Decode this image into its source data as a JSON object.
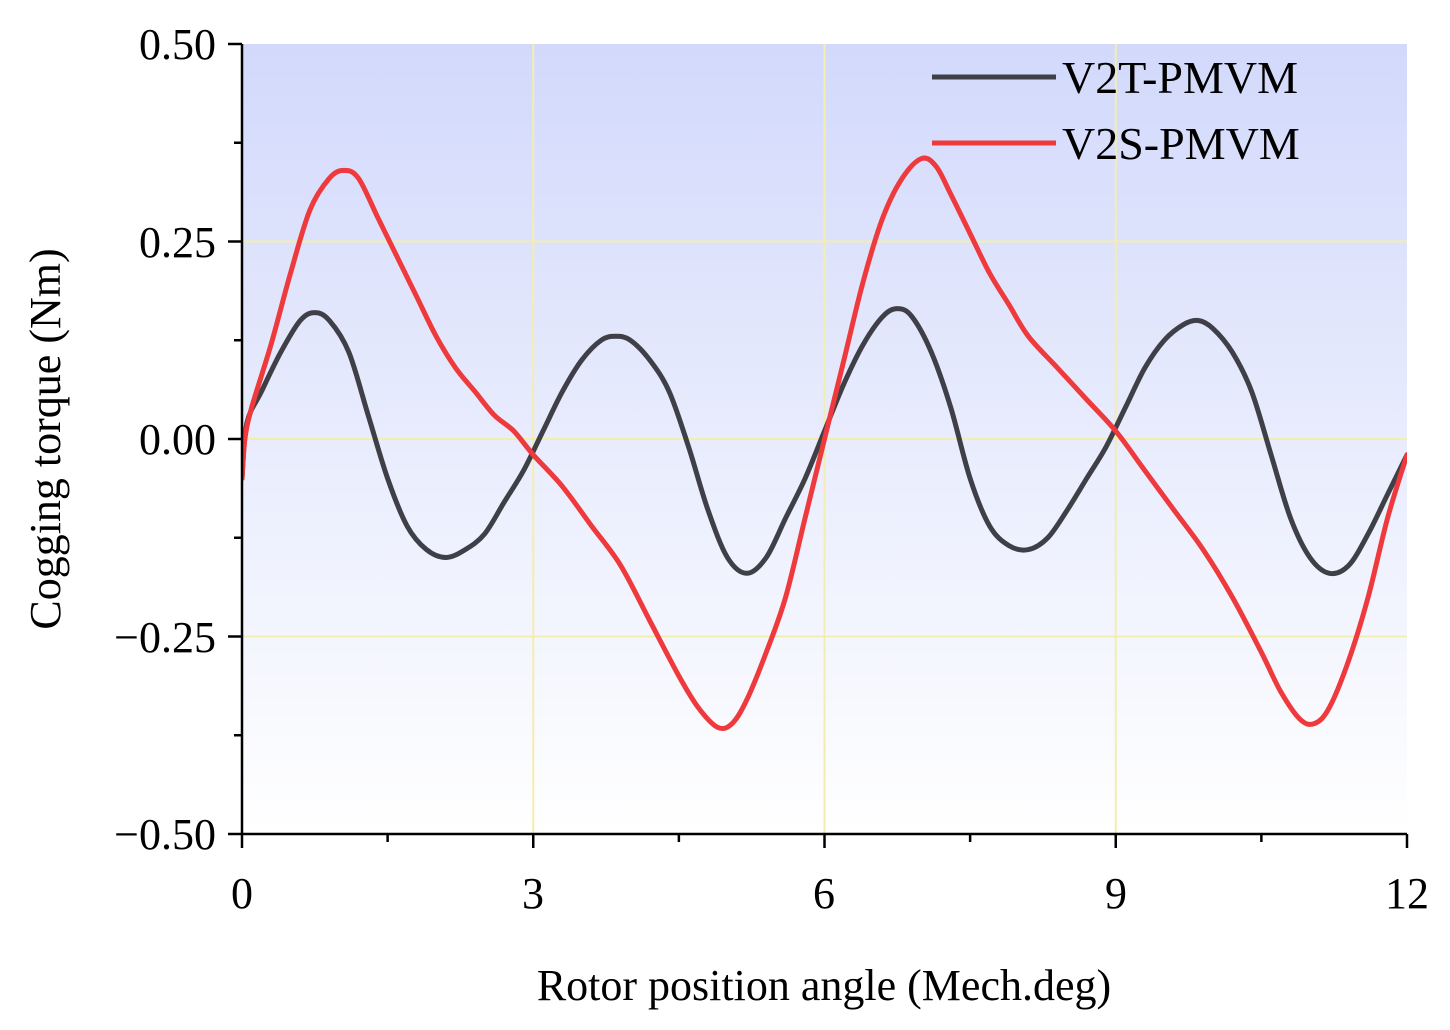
{
  "chart_data": {
    "type": "line",
    "title": "",
    "xlabel": "Rotor position angle (Mech.deg)",
    "ylabel": "Cogging torque (Nm)",
    "xlim": [
      0,
      12
    ],
    "ylim": [
      -0.5,
      0.5
    ],
    "xticks": [
      0,
      3,
      6,
      9,
      12
    ],
    "xtick_labels": [
      "0",
      "3",
      "6",
      "9",
      "12"
    ],
    "yticks": [
      -0.5,
      -0.25,
      0,
      0.25,
      0.5
    ],
    "ytick_labels": [
      "−0.50",
      "−0.25",
      "0.00",
      "0.25",
      "0.50"
    ],
    "grid": true,
    "legend_position": "top-right",
    "colors": {
      "grid": "#f3eeb0",
      "background_top": "#d2d9fb",
      "background_bottom": "#ffffff",
      "axis": "#000000"
    },
    "series": [
      {
        "name": "V2T-PMVM",
        "color": "#3f3f47",
        "x": [
          0,
          0.05,
          0.2,
          0.4,
          0.6,
          0.75,
          0.9,
          1.1,
          1.3,
          1.5,
          1.7,
          1.9,
          2.1,
          2.3,
          2.5,
          2.7,
          2.9,
          3.1,
          3.3,
          3.5,
          3.7,
          3.85,
          4.0,
          4.2,
          4.4,
          4.6,
          4.8,
          5.0,
          5.2,
          5.4,
          5.6,
          5.8,
          6.0,
          6.2,
          6.4,
          6.6,
          6.75,
          6.9,
          7.1,
          7.3,
          7.5,
          7.7,
          7.9,
          8.1,
          8.3,
          8.5,
          8.7,
          8.9,
          9.1,
          9.3,
          9.5,
          9.7,
          9.85,
          10.0,
          10.2,
          10.4,
          10.6,
          10.8,
          11.0,
          11.2,
          11.4,
          11.6,
          11.8,
          12.0
        ],
        "y": [
          -0.05,
          0.02,
          0.06,
          0.11,
          0.15,
          0.16,
          0.15,
          0.11,
          0.03,
          -0.05,
          -0.11,
          -0.14,
          -0.15,
          -0.14,
          -0.12,
          -0.08,
          -0.04,
          0.01,
          0.06,
          0.1,
          0.125,
          0.13,
          0.125,
          0.1,
          0.06,
          -0.01,
          -0.09,
          -0.15,
          -0.17,
          -0.15,
          -0.1,
          -0.05,
          0.01,
          0.07,
          0.12,
          0.155,
          0.165,
          0.155,
          0.11,
          0.04,
          -0.05,
          -0.11,
          -0.135,
          -0.14,
          -0.125,
          -0.09,
          -0.05,
          -0.01,
          0.04,
          0.09,
          0.125,
          0.145,
          0.15,
          0.14,
          0.11,
          0.06,
          -0.02,
          -0.1,
          -0.15,
          -0.17,
          -0.16,
          -0.12,
          -0.07,
          -0.02
        ]
      },
      {
        "name": "V2S-PMVM",
        "color": "#ee3a3d",
        "x": [
          0,
          0.03,
          0.1,
          0.3,
          0.5,
          0.7,
          0.9,
          1.05,
          1.2,
          1.4,
          1.6,
          1.8,
          2.0,
          2.2,
          2.4,
          2.6,
          2.8,
          3.0,
          3.3,
          3.6,
          3.9,
          4.2,
          4.5,
          4.7,
          4.9,
          5.05,
          5.2,
          5.4,
          5.6,
          5.8,
          6.0,
          6.2,
          6.4,
          6.6,
          6.8,
          7.0,
          7.15,
          7.3,
          7.5,
          7.7,
          7.9,
          8.1,
          8.4,
          8.7,
          9.0,
          9.3,
          9.6,
          9.9,
          10.2,
          10.5,
          10.7,
          10.9,
          11.05,
          11.2,
          11.4,
          11.6,
          11.8,
          12.0
        ],
        "y": [
          -0.05,
          0.0,
          0.04,
          0.12,
          0.21,
          0.29,
          0.33,
          0.34,
          0.33,
          0.28,
          0.23,
          0.18,
          0.13,
          0.09,
          0.06,
          0.03,
          0.01,
          -0.02,
          -0.06,
          -0.11,
          -0.16,
          -0.23,
          -0.3,
          -0.34,
          -0.365,
          -0.36,
          -0.33,
          -0.27,
          -0.2,
          -0.1,
          0.0,
          0.1,
          0.2,
          0.28,
          0.33,
          0.355,
          0.345,
          0.31,
          0.26,
          0.21,
          0.17,
          0.13,
          0.09,
          0.05,
          0.01,
          -0.04,
          -0.09,
          -0.14,
          -0.2,
          -0.27,
          -0.32,
          -0.355,
          -0.36,
          -0.34,
          -0.28,
          -0.2,
          -0.1,
          -0.02
        ]
      }
    ]
  }
}
